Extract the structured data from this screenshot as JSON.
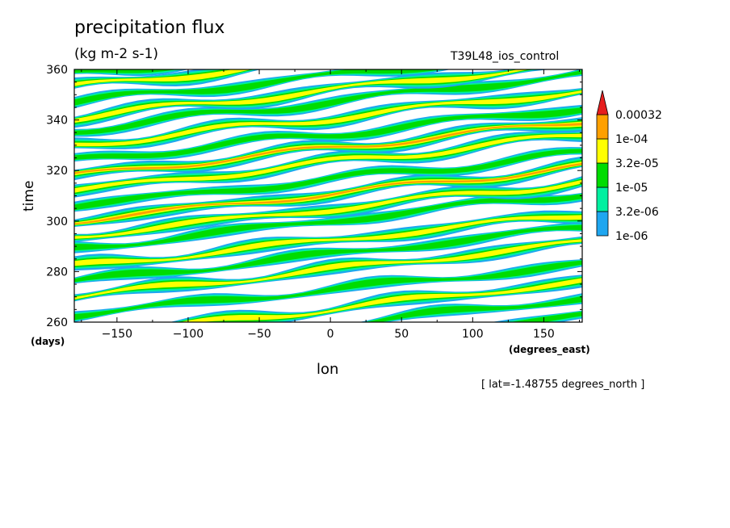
{
  "chart_data": {
    "type": "heatmap",
    "title": "precipitation flux",
    "units": "(kg m-2 s-1)",
    "run_label": "T39L48_ios_control",
    "xlabel": "lon",
    "ylabel": "time",
    "x_unit": "(degrees_east)",
    "y_unit": "(days)",
    "annotation": "[ lat=-1.48755 degrees_north ]",
    "xlim": [
      -180,
      177
    ],
    "ylim": [
      260,
      360
    ],
    "x_ticks": [
      -150,
      -100,
      -50,
      0,
      50,
      100,
      150
    ],
    "y_ticks": [
      260,
      280,
      300,
      320,
      340,
      360
    ],
    "x_tick_labels": [
      "−150",
      "−100",
      "−50",
      "0",
      "50",
      "100",
      "150"
    ],
    "y_tick_labels": [
      "260",
      "280",
      "300",
      "320",
      "340",
      "360"
    ],
    "legend": {
      "placement": "right",
      "levels": [
        "1e-06",
        "3.2e-06",
        "1e-05",
        "3.2e-05",
        "1e-04",
        "0.00032"
      ],
      "colors": [
        "#1ea6f0",
        "#00f0a0",
        "#00dc00",
        "#ffff00",
        "#ffa000",
        "#e61e1e"
      ]
    },
    "bands": [
      {
        "t0": 263,
        "slope": 0.055,
        "intensity": 3
      },
      {
        "t0": 270,
        "slope": 0.06,
        "intensity": 4
      },
      {
        "t0": 276,
        "slope": 0.06,
        "intensity": 3
      },
      {
        "t0": 282,
        "slope": 0.058,
        "intensity": 4
      },
      {
        "t0": 289,
        "slope": 0.062,
        "intensity": 3
      },
      {
        "t0": 294,
        "slope": 0.06,
        "intensity": 4
      },
      {
        "t0": 300,
        "slope": 0.06,
        "intensity": 5
      },
      {
        "t0": 306,
        "slope": 0.058,
        "intensity": 3
      },
      {
        "t0": 312,
        "slope": 0.062,
        "intensity": 4
      },
      {
        "t0": 318,
        "slope": 0.06,
        "intensity": 5
      },
      {
        "t0": 324,
        "slope": 0.058,
        "intensity": 3
      },
      {
        "t0": 330,
        "slope": 0.06,
        "intensity": 4
      },
      {
        "t0": 336,
        "slope": 0.062,
        "intensity": 3
      },
      {
        "t0": 341,
        "slope": 0.06,
        "intensity": 4
      },
      {
        "t0": 347,
        "slope": 0.058,
        "intensity": 3
      },
      {
        "t0": 353,
        "slope": 0.06,
        "intensity": 4
      },
      {
        "t0": 358,
        "slope": 0.06,
        "intensity": 3
      },
      {
        "t0": 248,
        "slope": 0.06,
        "intensity": 3
      },
      {
        "t0": 254,
        "slope": 0.062,
        "intensity": 4
      },
      {
        "t0": 241,
        "slope": 0.06,
        "intensity": 3
      }
    ]
  }
}
